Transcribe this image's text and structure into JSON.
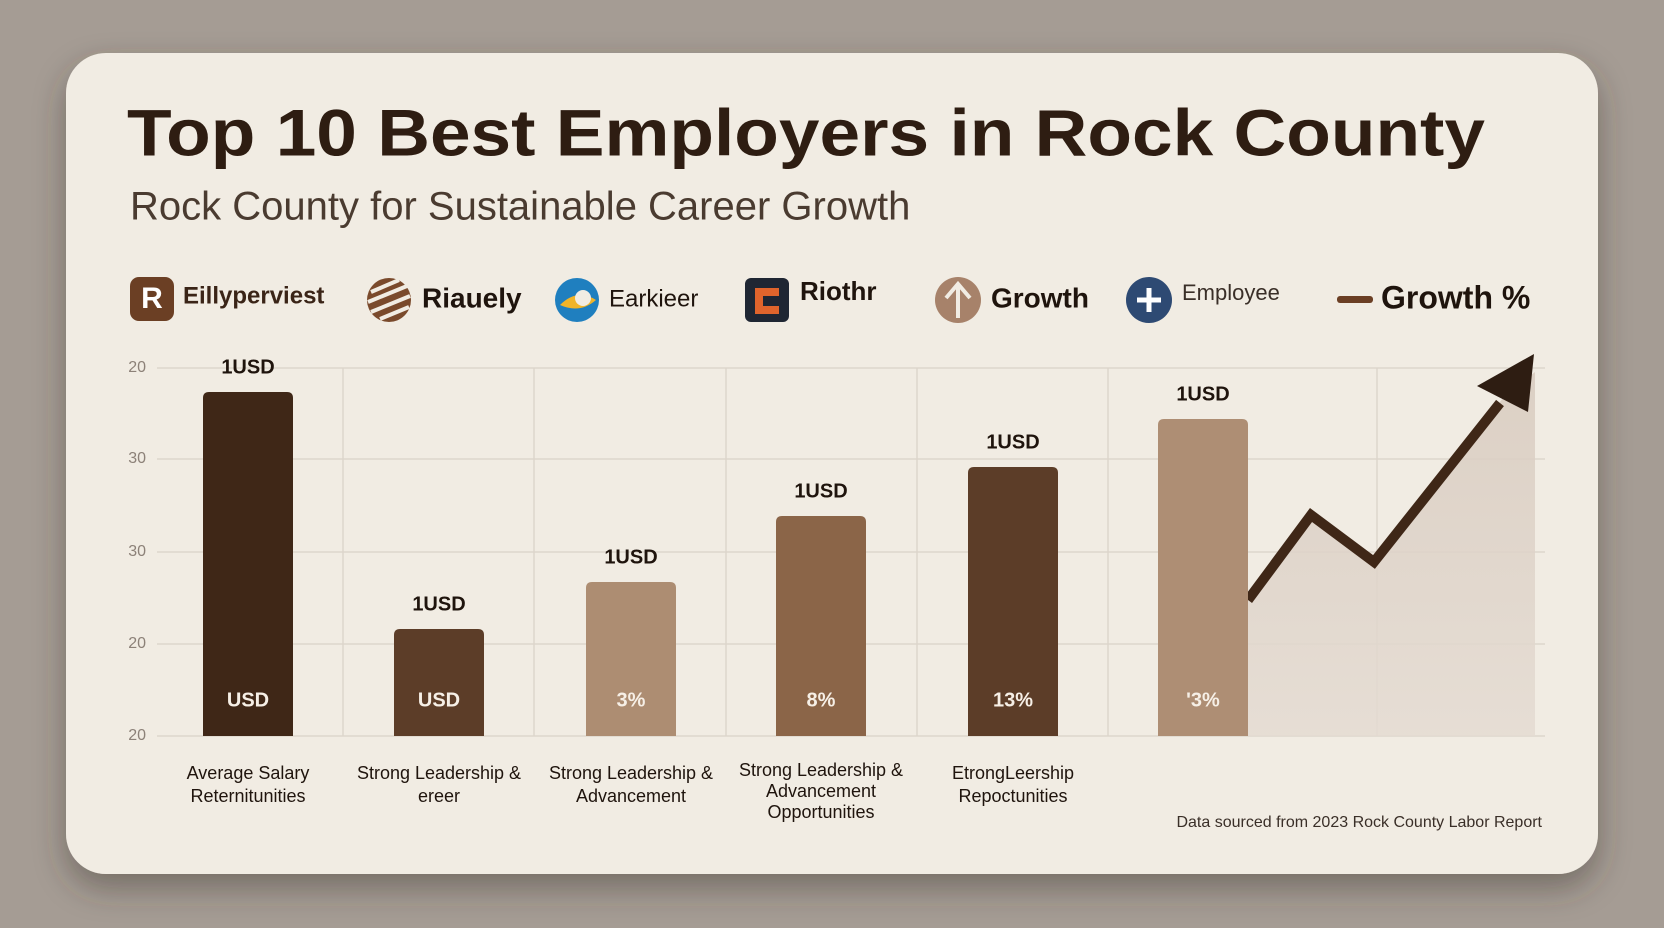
{
  "header": {
    "title": "Top 10 Best Employers in Rock County",
    "subtitle": "Rock County for Sustainable Career Growth"
  },
  "logos": [
    {
      "label": "Eillyperviest"
    },
    {
      "label": "Riauely"
    },
    {
      "label": "Earkieer"
    },
    {
      "label": "Riothr"
    },
    {
      "label": "Growth"
    },
    {
      "label": "Employee"
    },
    {
      "label": "Growth %"
    }
  ],
  "y_axis_labels": [
    "20",
    "30",
    "30",
    "20",
    "20"
  ],
  "bars": [
    {
      "top_label": "1USD",
      "inner_label": "USD",
      "category": [
        "Average Salary",
        "Reternitunities"
      ]
    },
    {
      "top_label": "1USD",
      "inner_label": "USD",
      "category": [
        "Strong Leadership &",
        "ereer"
      ]
    },
    {
      "top_label": "1USD",
      "inner_label": "3%",
      "category": [
        "Strong Leadership &",
        "Advancement"
      ]
    },
    {
      "top_label": "1USD",
      "inner_label": "8%",
      "category": [
        "Strong Leadership &",
        "Advancement",
        "Opportunities"
      ]
    },
    {
      "top_label": "1USD",
      "inner_label": "13%",
      "category": [
        "EtrongLeership",
        "Repoctunities"
      ]
    },
    {
      "top_label": "1USD",
      "inner_label": "'3%",
      "category": []
    }
  ],
  "source": "Data sourced from 2023 Rock County Labor Report"
}
